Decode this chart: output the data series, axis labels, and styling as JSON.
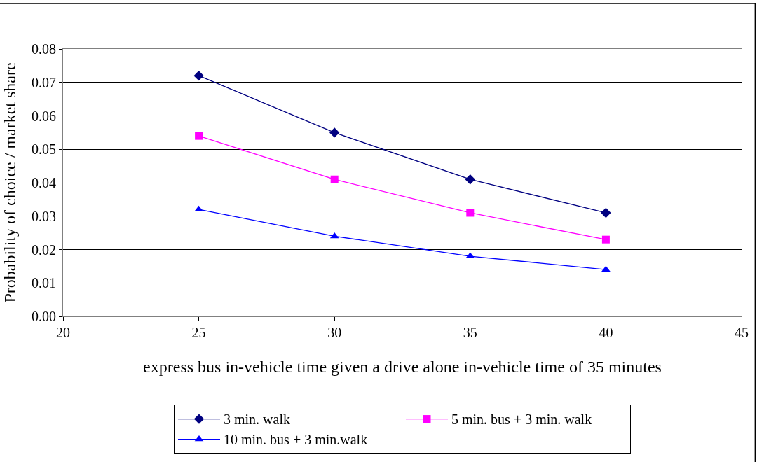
{
  "chart_data": {
    "type": "line",
    "xlabel": "express bus in-vehicle time given a drive alone in-vehicle time of 35 minutes",
    "ylabel": "Probability of choice / market share",
    "x": [
      25,
      30,
      35,
      40
    ],
    "series": [
      {
        "name": "3 min. walk",
        "color": "#000080",
        "marker": "diamond",
        "values": [
          0.072,
          0.055,
          0.041,
          0.031
        ]
      },
      {
        "name": "5 min. bus + 3 min. walk",
        "color": "#ff00ff",
        "marker": "square",
        "values": [
          0.054,
          0.041,
          0.031,
          0.023
        ]
      },
      {
        "name": "10 min. bus + 3 min.walk",
        "color": "#0000ff",
        "marker": "triangle",
        "values": [
          0.032,
          0.024,
          0.018,
          0.014
        ]
      }
    ],
    "xlim": [
      20,
      45
    ],
    "xticks": [
      20,
      25,
      30,
      35,
      40,
      45
    ],
    "ylim": [
      0,
      0.08
    ],
    "yticks": [
      {
        "value": 0,
        "label": "0.00"
      },
      {
        "value": 0.01,
        "label": "0.01"
      },
      {
        "value": 0.02,
        "label": "0.02"
      },
      {
        "value": 0.03,
        "label": "0.03"
      },
      {
        "value": 0.04,
        "label": "0.04"
      },
      {
        "value": 0.05,
        "label": "0.05"
      },
      {
        "value": 0.06,
        "label": "0.06"
      },
      {
        "value": 0.07,
        "label": "0.07"
      },
      {
        "value": 0.08,
        "label": "0.08"
      }
    ],
    "grid": "y",
    "legend": "bottom",
    "line_style": "solid"
  }
}
